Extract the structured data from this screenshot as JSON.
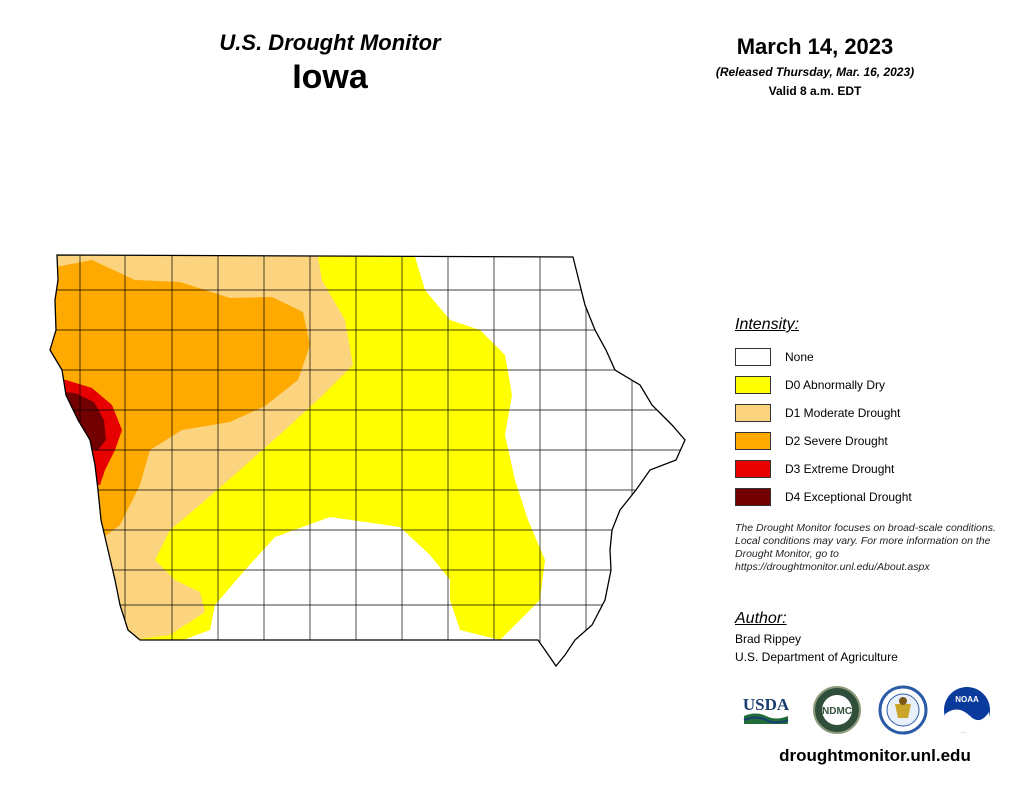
{
  "header": {
    "monitor_title": "U.S. Drought Monitor",
    "state": "Iowa",
    "date": "March 14, 2023",
    "released": "(Released Thursday, Mar. 16, 2023)",
    "valid": "Valid 8 a.m. EDT"
  },
  "legend": {
    "heading": "Intensity:",
    "items": [
      {
        "label": "None",
        "color": "#ffffff"
      },
      {
        "label": "D0 Abnormally Dry",
        "color": "#ffff00"
      },
      {
        "label": "D1 Moderate Drought",
        "color": "#fcd37f"
      },
      {
        "label": "D2 Severe Drought",
        "color": "#ffaa00"
      },
      {
        "label": "D3 Extreme Drought",
        "color": "#e60000"
      },
      {
        "label": "D4 Exceptional Drought",
        "color": "#730000"
      }
    ]
  },
  "note": "The Drought Monitor focuses on broad-scale conditions. Local conditions may vary. For more information on the Drought Monitor, go to https://droughtmonitor.unl.edu/About.aspx",
  "author": {
    "heading": "Author:",
    "name": "Brad Rippey",
    "organization": "U.S. Department of Agriculture"
  },
  "logos": {
    "usda": "USDA",
    "ndmc": "NDMC",
    "noaa": "NOAA"
  },
  "website": "droughtmonitor.unl.edu"
}
